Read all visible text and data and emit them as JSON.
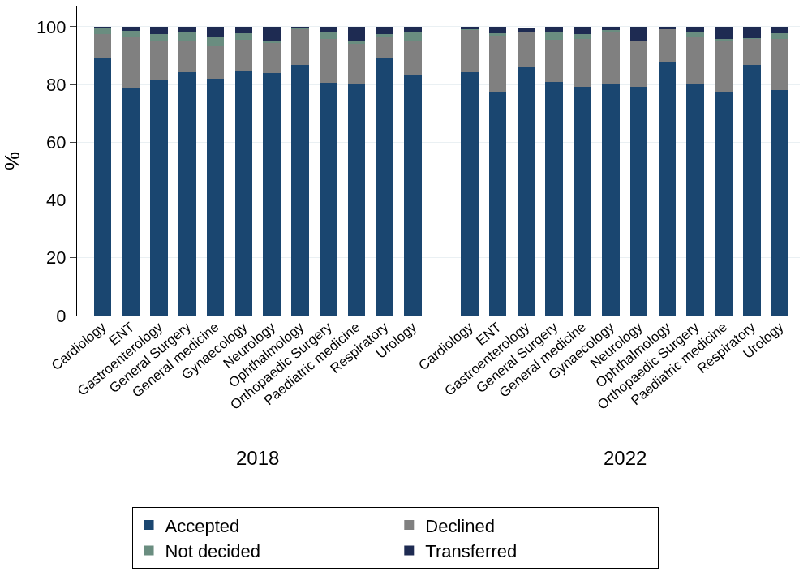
{
  "chart_data": {
    "type": "bar",
    "stacked": true,
    "ylabel": "%",
    "categories": [
      "Cardiology",
      "ENT",
      "Gastroenterology",
      "General Surgery",
      "General medicine",
      "Gynaecology",
      "Neurology",
      "Ophthalmology",
      "Orthopaedic Surgery",
      "Paediatric medicine",
      "Respiratory",
      "Urology",
      "Cardiology",
      "ENT",
      "Gastroenterology",
      "General Surgery",
      "General medicine",
      "Gynaecology",
      "Neurology",
      "Ophthalmology",
      "Orthopaedic Surgery",
      "Paediatric medicine",
      "Respiratory",
      "Urology"
    ],
    "series": [
      {
        "name": "Accepted",
        "color": "#1a4670",
        "values": [
          89.3,
          78.9,
          81.4,
          84.2,
          81.9,
          84.7,
          83.9,
          86.9,
          80.6,
          80.0,
          89.1,
          83.3,
          84.2,
          77.2,
          86.1,
          80.8,
          79.1,
          80.0,
          79.2,
          87.8,
          80.0,
          77.2,
          86.7,
          78.1
        ]
      },
      {
        "name": "Declined",
        "color": "#808080",
        "values": [
          8.1,
          17.8,
          13.9,
          10.8,
          11.3,
          10.9,
          10.6,
          12.5,
          15.2,
          14.0,
          7.1,
          11.7,
          14.8,
          19.7,
          11.8,
          14.8,
          16.7,
          18.5,
          16.0,
          11.3,
          16.7,
          18.2,
          9.2,
          17.7
        ]
      },
      {
        "name": "Not decided",
        "color": "#6a8d80",
        "values": [
          1.9,
          1.9,
          2.1,
          3.3,
          3.5,
          2.2,
          0.4,
          0.2,
          2.5,
          0.9,
          1.2,
          3.3,
          0.2,
          0.9,
          null,
          2.7,
          1.7,
          0.4,
          null,
          null,
          1.6,
          0.4,
          0.2,
          2.0
        ]
      },
      {
        "name": "Transferred",
        "color": "#1e2b52",
        "values": [
          0.7,
          1.4,
          2.6,
          1.7,
          3.3,
          2.2,
          5.1,
          0.4,
          1.7,
          5.1,
          2.6,
          1.7,
          0.8,
          2.2,
          1.9,
          1.7,
          2.5,
          1.1,
          4.7,
          0.8,
          1.7,
          4.2,
          3.9,
          2.2
        ]
      }
    ],
    "annotations": [
      "2018",
      "2022"
    ],
    "ylim": [
      0,
      107
    ],
    "yticks": [
      0,
      20,
      40,
      60,
      80,
      100
    ],
    "grid": "y",
    "legend": "bottom"
  }
}
